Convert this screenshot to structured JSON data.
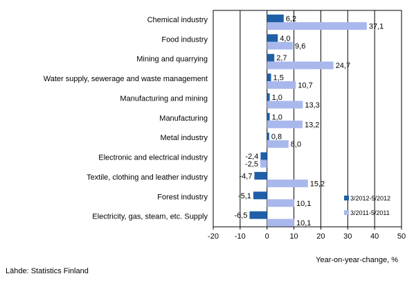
{
  "chart_data": {
    "type": "bar",
    "orientation": "horizontal",
    "categories": [
      "Chemical industry",
      "Food industry",
      "Mining and quarrying",
      "Water supply, sewerage and waste management",
      "Manufacturing and mining",
      "Manufacturing",
      "Metal industry",
      "Electronic and electrical industry",
      "Textile, clothing and leather industry",
      "Forest industry",
      "Electricity, gas, steam, etc. Supply"
    ],
    "series": [
      {
        "name": "3/2012-5/2012",
        "color": "#1f5fa8",
        "values": [
          6.2,
          4.0,
          2.7,
          1.5,
          1.0,
          1.0,
          0.8,
          -2.4,
          -4.7,
          -5.1,
          -6.5
        ],
        "labels": [
          "6,2",
          "4,0",
          "2,7",
          "1,5",
          "1,0",
          "1,0",
          "0,8",
          "-2,4",
          "-4,7",
          "-5,1",
          "-6,5"
        ]
      },
      {
        "name": "3/2011-5/2011",
        "color": "#a9b8ec",
        "values": [
          37.1,
          9.6,
          24.7,
          10.7,
          13.3,
          13.2,
          8.0,
          -2.5,
          15.2,
          10.1,
          10.1
        ],
        "labels": [
          "37,1",
          "9,6",
          "24,7",
          "10,7",
          "13,3",
          "13,2",
          "8,0",
          "-2,5",
          "15,2",
          "10,1",
          "10,1"
        ]
      }
    ],
    "xlim": [
      -20,
      50
    ],
    "xticks": [
      "-20",
      "-10",
      "0",
      "10",
      "20",
      "30",
      "40",
      "50"
    ],
    "xlabel": "Year-on-year-change, %",
    "grid": "vertical",
    "legend": "bottom-right"
  },
  "source": "Lähde: Statistics Finland"
}
